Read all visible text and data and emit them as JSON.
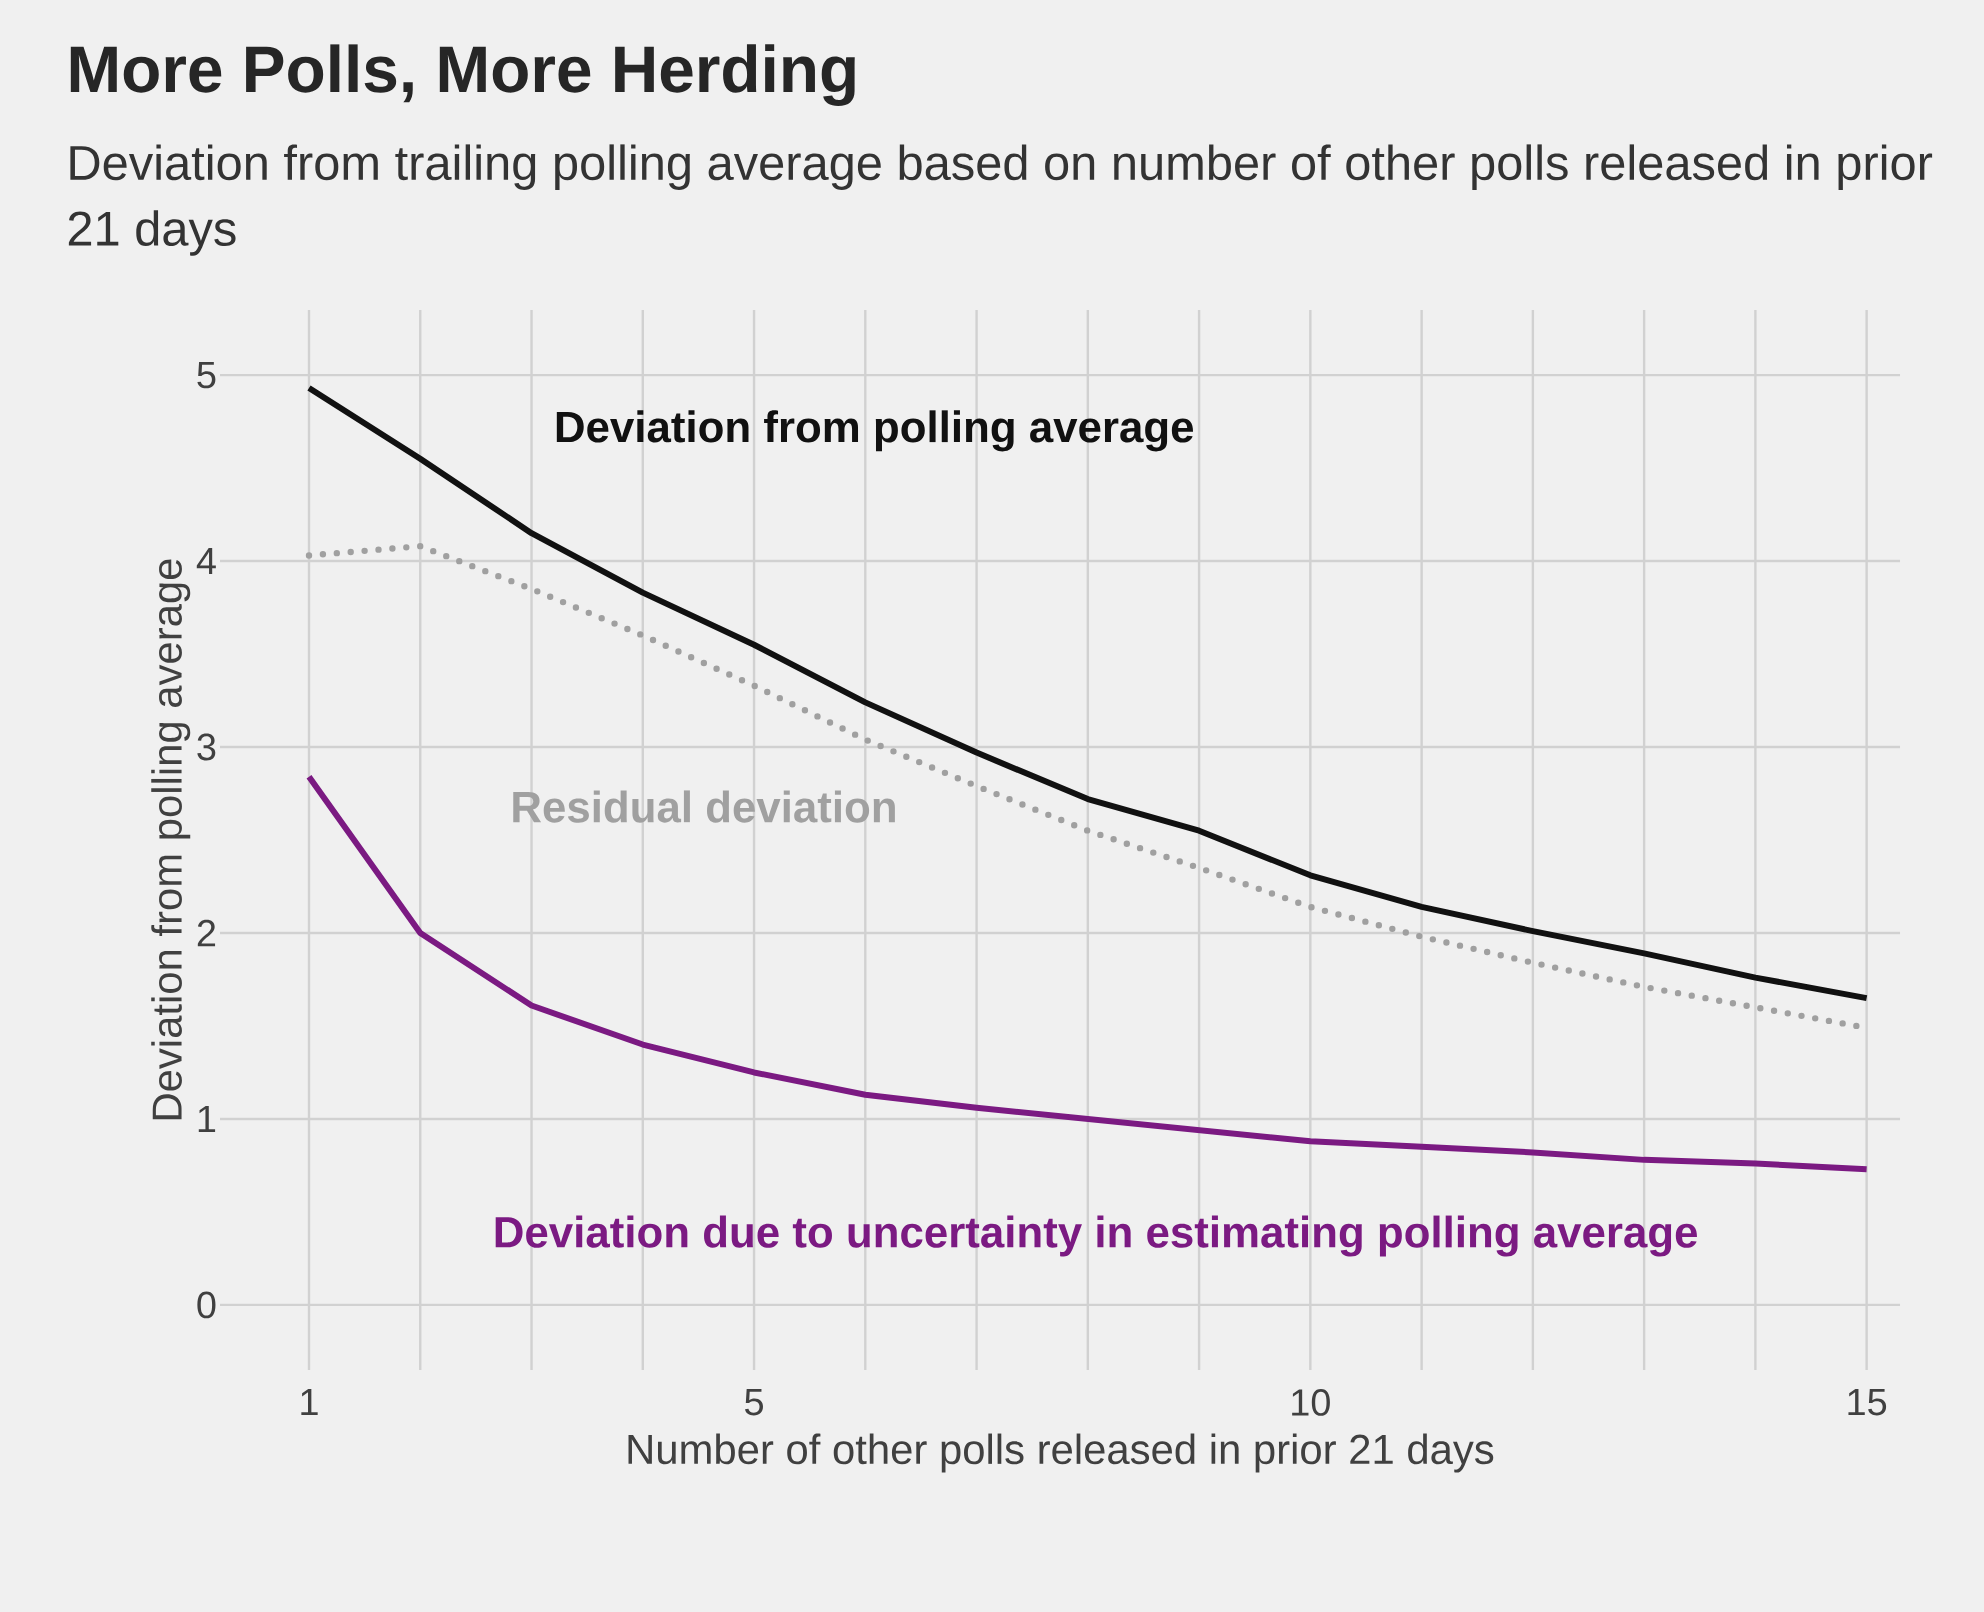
{
  "chart_data": {
    "type": "line",
    "title": "More Polls, More Herding",
    "subtitle": "Deviation from trailing polling average based on number of other polls released in prior 21 days",
    "xlabel": "Number of other polls released in prior 21 days",
    "ylabel": "Deviation from polling average",
    "x": [
      1,
      2,
      3,
      4,
      5,
      6,
      7,
      8,
      9,
      10,
      11,
      12,
      13,
      14,
      15
    ],
    "series": [
      {
        "name": "Deviation from polling average",
        "color": "#111111",
        "line_style": "solid",
        "values": [
          4.93,
          4.55,
          4.15,
          3.83,
          3.55,
          3.24,
          2.97,
          2.72,
          2.55,
          2.31,
          2.14,
          2.01,
          1.89,
          1.76,
          1.65
        ]
      },
      {
        "name": "Residual deviation",
        "color": "#a0a0a0",
        "line_style": "dotted",
        "values": [
          4.03,
          4.08,
          3.85,
          3.6,
          3.33,
          3.04,
          2.79,
          2.55,
          2.35,
          2.14,
          1.98,
          1.84,
          1.71,
          1.6,
          1.49
        ]
      },
      {
        "name": "Deviation due to uncertainty in estimating polling average",
        "color": "#7b1a82",
        "line_style": "solid",
        "values": [
          2.84,
          2.0,
          1.61,
          1.4,
          1.25,
          1.13,
          1.06,
          1.0,
          0.94,
          0.88,
          0.85,
          0.82,
          0.78,
          0.76,
          0.73
        ]
      }
    ],
    "xlim": [
      0.2,
      15.3
    ],
    "ylim": [
      -0.35,
      5.35
    ],
    "xticks": [
      1,
      {
        "value": 2,
        "label": null
      },
      {
        "value": 3,
        "label": null
      },
      {
        "value": 4,
        "label": null
      },
      5,
      {
        "value": 6,
        "label": null
      },
      {
        "value": 7,
        "label": null
      },
      {
        "value": 8,
        "label": null
      },
      {
        "value": 9,
        "label": null
      },
      10,
      {
        "value": 11,
        "label": null
      },
      {
        "value": 12,
        "label": null
      },
      {
        "value": 13,
        "label": null
      },
      {
        "value": 14,
        "label": null
      },
      15
    ],
    "yticks": [
      0,
      1,
      2,
      3,
      4,
      5
    ],
    "grid": true,
    "marker": "none"
  }
}
